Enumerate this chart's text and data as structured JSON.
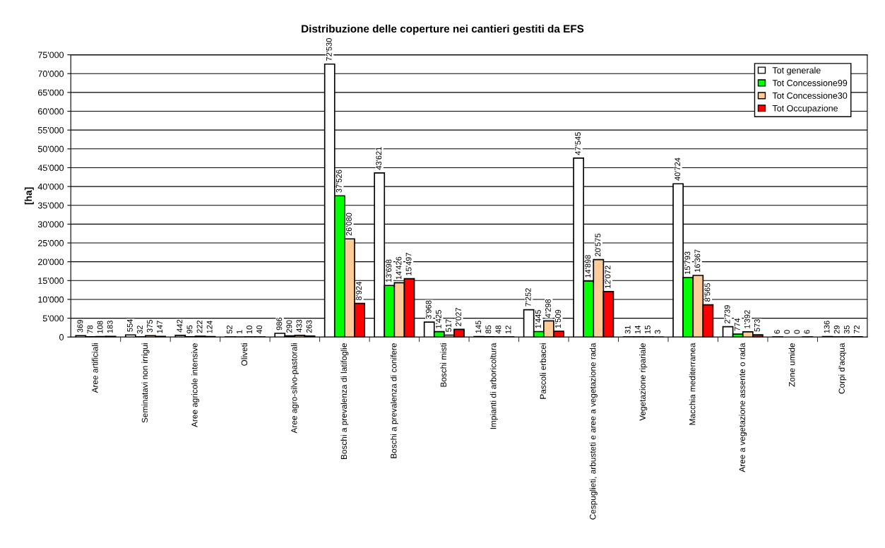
{
  "chart_data": {
    "type": "bar",
    "title": "Distribuzione delle coperture nei cantieri gestiti da EFS",
    "ylabel": "[ha]",
    "categories": [
      "Aree artificiali",
      "Seminatavi non irrigui",
      "Aree agricole intensive",
      "Oliveti",
      "Aree agro-silvo-pastorali",
      "Boschi a prevalenza di latifoglie",
      "Boschi a prevalenza di conifere",
      "Boschi misti",
      "Impianti di arboricoltura",
      "Pascoli erbacei",
      "Cespuglieti, arbusteti e aree a vegetazione rada",
      "Vegetazione ripariale",
      "Macchia mediterranea",
      "Aree a vegetazione assente o rada",
      "Zone umide",
      "Corpi d'acqua"
    ],
    "series": [
      {
        "name": "Tot generale",
        "color": "#ffffff",
        "values": [
          369,
          554,
          442,
          52,
          986,
          72530,
          43621,
          3968,
          145,
          7252,
          47545,
          31,
          40724,
          2739,
          6,
          136
        ],
        "value_labels": [
          "369",
          "554",
          "442",
          "52",
          "986",
          "72'530",
          "43'621",
          "3'968",
          "145",
          "7'252",
          "47'545",
          "31",
          "40'724",
          "2'739",
          "6",
          "136"
        ]
      },
      {
        "name": "Tot Concessione99",
        "color": "#00ff00",
        "values": [
          78,
          32,
          95,
          1,
          290,
          37526,
          13698,
          1425,
          85,
          1445,
          14898,
          14,
          15793,
          774,
          0,
          29
        ],
        "value_labels": [
          "78",
          "32",
          "95",
          "1",
          "290",
          "37'526",
          "13'698",
          "1'425",
          "85",
          "1'445",
          "14'898",
          "14",
          "15'793",
          "774",
          "0",
          "29"
        ]
      },
      {
        "name": "Tot Concessione30",
        "color": "#ffcc99",
        "values": [
          108,
          375,
          222,
          10,
          433,
          26080,
          14426,
          517,
          48,
          4298,
          20575,
          15,
          16367,
          1392,
          0,
          35
        ],
        "value_labels": [
          "108",
          "375",
          "222",
          "10",
          "433",
          "26'080",
          "14'426",
          "517",
          "48",
          "4'298",
          "20'575",
          "15",
          "16'367",
          "1'392",
          "0",
          "35"
        ]
      },
      {
        "name": "Tot Occupazione",
        "color": "#ff0000",
        "values": [
          183,
          147,
          124,
          40,
          263,
          8924,
          15497,
          2027,
          12,
          1509,
          12072,
          3,
          8565,
          573,
          6,
          72
        ],
        "value_labels": [
          "183",
          "147",
          "124",
          "40",
          "263",
          "8'924",
          "15'497",
          "2'027",
          "12",
          "1'509",
          "12'072",
          "3",
          "8'565",
          "573",
          "6",
          "72"
        ]
      }
    ],
    "ylim": [
      0,
      75000
    ],
    "yticks": [
      {
        "value": 0,
        "label": "0"
      },
      {
        "value": 5000,
        "label": "5'000"
      },
      {
        "value": 10000,
        "label": "10'000"
      },
      {
        "value": 15000,
        "label": "15'000"
      },
      {
        "value": 20000,
        "label": "20'000"
      },
      {
        "value": 25000,
        "label": "25'000"
      },
      {
        "value": 30000,
        "label": "30'000"
      },
      {
        "value": 35000,
        "label": "35'000"
      },
      {
        "value": 40000,
        "label": "40'000"
      },
      {
        "value": 45000,
        "label": "45'000"
      },
      {
        "value": 50000,
        "label": "50'000"
      },
      {
        "value": 55000,
        "label": "55'000"
      },
      {
        "value": 60000,
        "label": "60'000"
      },
      {
        "value": 65000,
        "label": "65'000"
      },
      {
        "value": 70000,
        "label": "70'000"
      },
      {
        "value": 75000,
        "label": "75'000"
      }
    ],
    "grid": "y",
    "legend": "top right"
  }
}
